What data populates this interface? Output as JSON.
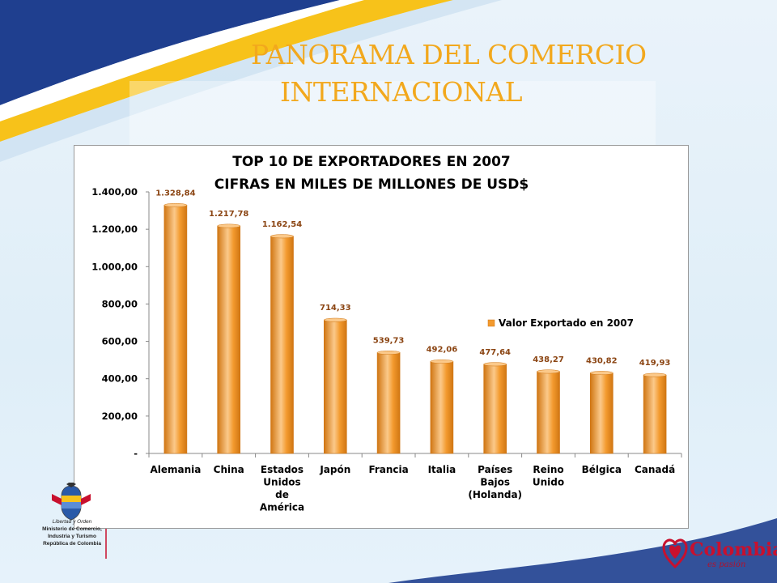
{
  "slide": {
    "title_line1": "PANORAMA DEL COMERCIO",
    "title_line2": "INTERNACIONAL"
  },
  "footer": {
    "ministry_lines": [
      "Ministerio de Comercio,",
      "Industria y Turismo",
      "República de Colombia"
    ],
    "ministry_motto": "Libertad y Orden",
    "brand_name": "Colombia",
    "brand_mark": "®",
    "brand_tagline": "es pasión"
  },
  "colors": {
    "bar_fill": "#f39a2e",
    "bar_highlight": "#fbc98a",
    "bar_dark": "#d07613",
    "label_color": "#8b4513",
    "title_gold": "#f2a81d",
    "wave_blue": "#1f3f8f",
    "wave_yellow": "#f7c21a",
    "brand_red": "#c8102e"
  },
  "chart_data": {
    "type": "bar",
    "title": "TOP 10 DE EXPORTADORES EN 2007",
    "subtitle": "CIFRAS EN MILES DE MILLONES DE USD$",
    "categories": [
      [
        "Alemania"
      ],
      [
        "China"
      ],
      [
        "Estados",
        "Unidos",
        "de",
        "América"
      ],
      [
        "Japón"
      ],
      [
        "Francia"
      ],
      [
        "Italia"
      ],
      [
        "Países",
        "Bajos",
        "(Holanda)"
      ],
      [
        "Reino",
        "Unido"
      ],
      [
        "Bélgica"
      ],
      [
        "Canadá"
      ]
    ],
    "series": [
      {
        "name": "Valor Exportado en 2007",
        "values": [
          1328.84,
          1217.78,
          1162.54,
          714.33,
          539.73,
          492.06,
          477.64,
          438.27,
          430.82,
          419.93
        ],
        "labels": [
          "1.328,84",
          "1.217,78",
          "1.162,54",
          "714,33",
          "539,73",
          "492,06",
          "477,64",
          "438,27",
          "430,82",
          "419,93"
        ]
      }
    ],
    "ylim": [
      0,
      1400
    ],
    "yticks": [
      0,
      200,
      400,
      600,
      800,
      1000,
      1200,
      1400
    ],
    "ytick_labels": [
      "-",
      "200,00",
      "400,00",
      "600,00",
      "800,00",
      "1.000,00",
      "1.200,00",
      "1.400,00"
    ],
    "legend_position": "right",
    "grid": false
  }
}
